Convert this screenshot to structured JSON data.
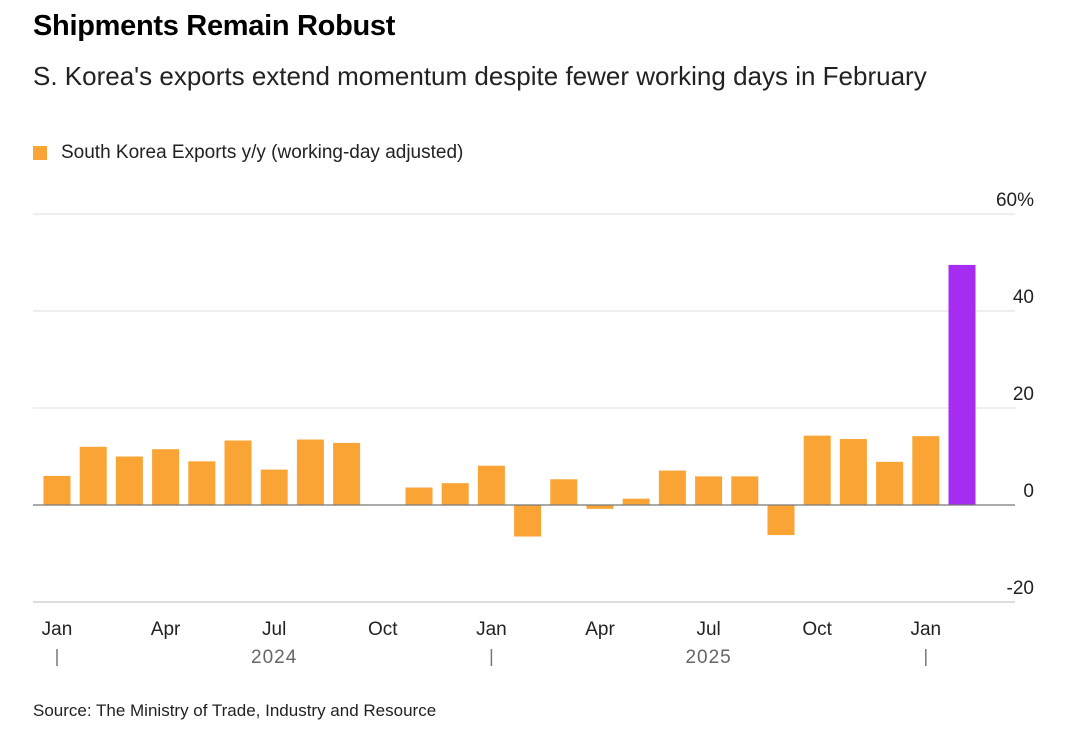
{
  "chart_data": {
    "type": "bar",
    "title": "Shipments Remain Robust",
    "subtitle": "S. Korea's exports extend momentum despite fewer working days in February",
    "legend": [
      "South Korea Exports y/y (working-day adjusted)"
    ],
    "source": "Source: The Ministry of Trade, Industry and Resource",
    "series": [
      {
        "name": "South Korea Exports y/y (working-day adjusted)",
        "color": "#f9a434",
        "highlight_color": "#a62cf2",
        "highlight_index": 25,
        "categories": [
          "2024-01",
          "2024-02",
          "2024-03",
          "2024-04",
          "2024-05",
          "2024-06",
          "2024-07",
          "2024-08",
          "2024-09",
          "2024-10",
          "2024-11",
          "2024-12",
          "2025-01",
          "2025-02",
          "2025-03",
          "2025-04",
          "2025-05",
          "2025-06",
          "2025-07",
          "2025-08",
          "2025-09",
          "2025-10",
          "2025-11",
          "2025-12",
          "2026-01",
          "2026-02"
        ],
        "values": [
          6,
          12,
          10,
          11.5,
          9,
          13.3,
          7.3,
          13.5,
          12.8,
          0,
          3.6,
          4.5,
          8.1,
          -6.5,
          5.3,
          -0.8,
          1.3,
          7.1,
          5.9,
          5.9,
          -6.2,
          14.3,
          13.6,
          8.9,
          14.2,
          49.5
        ]
      }
    ],
    "y_ticks": [
      {
        "value": 60,
        "label": "60%"
      },
      {
        "value": 40,
        "label": "40"
      },
      {
        "value": 20,
        "label": "20"
      },
      {
        "value": 0,
        "label": "0"
      },
      {
        "value": -20,
        "label": "-20"
      }
    ],
    "x_ticks": [
      {
        "index": 0,
        "label": "Jan"
      },
      {
        "index": 3,
        "label": "Apr"
      },
      {
        "index": 6,
        "label": "Jul"
      },
      {
        "index": 9,
        "label": "Oct"
      },
      {
        "index": 12,
        "label": "Jan"
      },
      {
        "index": 15,
        "label": "Apr"
      },
      {
        "index": 18,
        "label": "Jul"
      },
      {
        "index": 21,
        "label": "Oct"
      },
      {
        "index": 24,
        "label": "Jan"
      }
    ],
    "year_labels": [
      {
        "center_index": 6,
        "label": "2024"
      },
      {
        "center_index": 18,
        "label": "2025"
      }
    ],
    "year_separators": [
      0,
      12,
      24
    ],
    "ylim": [
      -20,
      60
    ]
  }
}
